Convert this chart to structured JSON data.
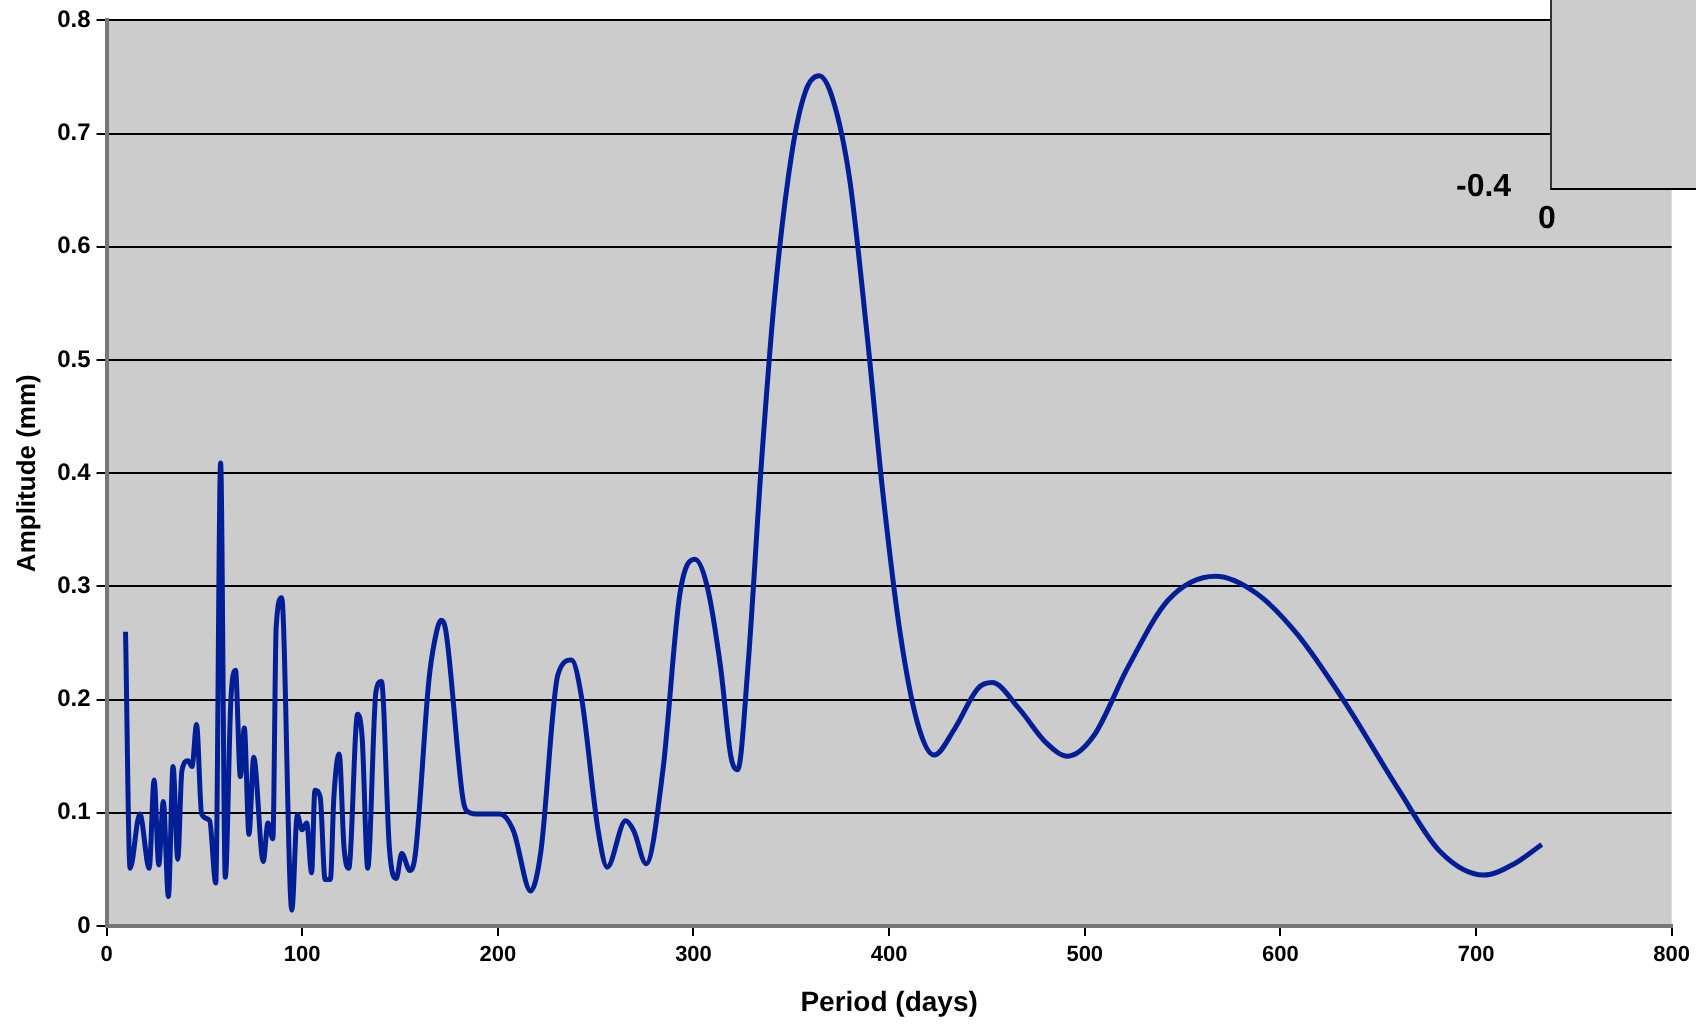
{
  "chart_data": {
    "type": "line",
    "xlabel": "Period (days)",
    "ylabel": "Amplitude (mm)",
    "xlim": [
      0,
      800
    ],
    "xticks": [
      0,
      100,
      200,
      300,
      400,
      500,
      600,
      700,
      800
    ],
    "ylim": [
      0,
      0.8
    ],
    "yticks": [
      0,
      0.1,
      0.2,
      0.3,
      0.4,
      0.5,
      0.6,
      0.7,
      0.8
    ],
    "grid": "y",
    "legend": false,
    "marker": "none",
    "line_style": "solid",
    "annotations": [
      "-0.4",
      "0"
    ],
    "series": [
      {
        "color": "#001e96",
        "x": [
          9.7,
          12,
          17,
          21.8,
          24.3,
          26.7,
          29,
          31.6,
          34,
          36.4,
          38.5,
          41.6,
          43.7,
          46,
          48.6,
          52.7,
          55.8,
          58.3,
          60.7,
          63.5,
          65.9,
          68.4,
          70.4,
          72.8,
          75.2,
          80.1,
          82.5,
          85,
          86.7,
          89.5,
          94.7,
          97.5,
          99.9,
          102.3,
          104.8,
          106.5,
          109.2,
          111.7,
          114.4,
          116.2,
          118.9,
          121.4,
          123.8,
          128.3,
          130.7,
          133.5,
          137.7,
          140.5,
          144.6,
          148.1,
          150.9,
          155,
          157.8,
          164.7,
          167.5,
          171,
          173.4,
          182,
          183.9,
          189,
          201,
          208,
          216.8,
          222,
          230.7,
          237.6,
          242.6,
          251.3,
          255.9,
          265.3,
          269.5,
          275.8,
          284.4,
          293.1,
          300.7,
          307,
          313.9,
          319.1,
          322.6,
          327.8,
          334.7,
          341.6,
          350.3,
          357.2,
          364.2,
          371.1,
          379.8,
          388.4,
          397.1,
          405.7,
          414.4,
          423,
          433.4,
          445.5,
          452.6,
          466.4,
          480.2,
          491.3,
          504.6,
          521.9,
          542.7,
          566.8,
          587.7,
          608.5,
          632.8,
          660.6,
          681.5,
          704,
          719.6,
          733.6
        ],
        "values": [
          0.26,
          0.051,
          0.099,
          0.051,
          0.129,
          0.054,
          0.11,
          0.026,
          0.141,
          0.059,
          0.137,
          0.146,
          0.141,
          0.178,
          0.099,
          0.093,
          0.038,
          0.409,
          0.043,
          0.198,
          0.226,
          0.132,
          0.175,
          0.081,
          0.149,
          0.057,
          0.091,
          0.077,
          0.264,
          0.29,
          0.014,
          0.098,
          0.085,
          0.091,
          0.047,
          0.12,
          0.114,
          0.041,
          0.041,
          0.114,
          0.152,
          0.069,
          0.051,
          0.187,
          0.165,
          0.051,
          0.207,
          0.216,
          0.068,
          0.042,
          0.064,
          0.049,
          0.063,
          0.216,
          0.25,
          0.27,
          0.261,
          0.114,
          0.102,
          0.099,
          0.099,
          0.084,
          0.031,
          0.066,
          0.222,
          0.235,
          0.204,
          0.084,
          0.052,
          0.093,
          0.084,
          0.055,
          0.138,
          0.294,
          0.324,
          0.3,
          0.228,
          0.15,
          0.138,
          0.228,
          0.408,
          0.558,
          0.683,
          0.737,
          0.751,
          0.731,
          0.66,
          0.528,
          0.378,
          0.258,
          0.18,
          0.151,
          0.174,
          0.21,
          0.215,
          0.192,
          0.162,
          0.15,
          0.168,
          0.228,
          0.288,
          0.309,
          0.294,
          0.258,
          0.198,
          0.12,
          0.066,
          0.045,
          0.055,
          0.072
        ]
      }
    ]
  }
}
